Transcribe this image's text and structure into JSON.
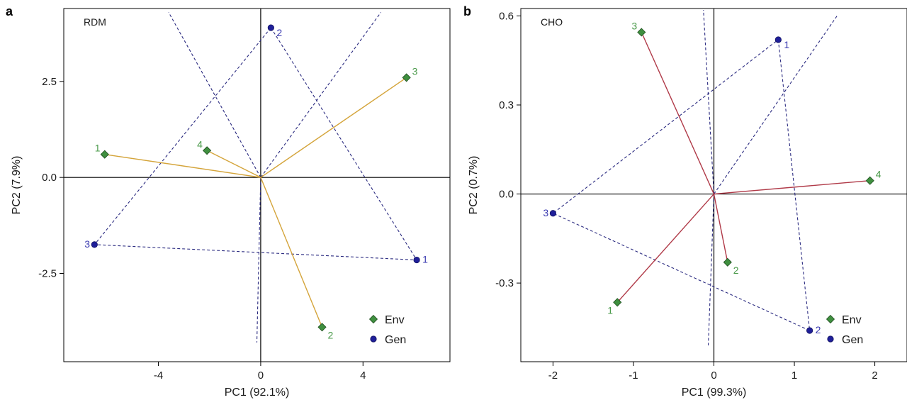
{
  "colors": {
    "env": "#4a9a4a",
    "env_fill": "#3f8f3f",
    "gen": "#1f1f99",
    "gen_label": "#3a3ab0",
    "axis": "#000000",
    "polygon": "#2a2a80"
  },
  "chart_data": [
    {
      "type": "scatter",
      "panel": "a",
      "title": "RDM",
      "xlabel": "PC1 (92.1%)",
      "ylabel": "PC2 (7.9%)",
      "xlim": [
        -7.7,
        7.4
      ],
      "ylim": [
        -4.8,
        4.4
      ],
      "xticks": [
        -4,
        0,
        4
      ],
      "xtick_labels": [
        "-4",
        "0",
        "4"
      ],
      "yticks": [
        -2.5,
        0,
        2.5
      ],
      "ytick_labels": [
        "-2.5",
        "0.0",
        "2.5"
      ],
      "legend": {
        "position": "bottom-right",
        "entries": [
          "Env",
          "Gen"
        ]
      },
      "vector_color": "#d4a43a",
      "env": [
        {
          "label": "1",
          "x": -6.1,
          "y": 0.6
        },
        {
          "label": "2",
          "x": 2.4,
          "y": -3.9
        },
        {
          "label": "3",
          "x": 5.7,
          "y": 2.6
        },
        {
          "label": "4",
          "x": -2.1,
          "y": 0.7
        }
      ],
      "gen": [
        {
          "label": "1",
          "x": 6.1,
          "y": -2.15
        },
        {
          "label": "2",
          "x": 0.4,
          "y": 3.9
        },
        {
          "label": "3",
          "x": -6.5,
          "y": -1.75
        }
      ],
      "polygon_order": [
        "2",
        "1",
        "3"
      ],
      "rays": [
        {
          "x1": 0,
          "y1": 0,
          "x2": -3.6,
          "y2": 4.3
        },
        {
          "x1": 0,
          "y1": 0,
          "x2": 4.7,
          "y2": 4.3
        },
        {
          "x1": 0,
          "y1": 0,
          "x2": -0.15,
          "y2": -4.3
        }
      ]
    },
    {
      "type": "scatter",
      "panel": "b",
      "title": "CHO",
      "xlabel": "PC1 (99.3%)",
      "ylabel": "PC2 (0.7%)",
      "xlim": [
        -2.4,
        2.4
      ],
      "ylim": [
        -0.565,
        0.625
      ],
      "xticks": [
        -2,
        -1,
        0,
        1,
        2
      ],
      "xtick_labels": [
        "-2",
        "-1",
        "0",
        "1",
        "2"
      ],
      "yticks": [
        -0.3,
        0,
        0.3,
        0.6
      ],
      "ytick_labels": [
        "-0.3",
        "0.0",
        "0.3",
        "0.6"
      ],
      "legend": {
        "position": "bottom-right",
        "entries": [
          "Env",
          "Gen"
        ]
      },
      "vector_color": "#b03a48",
      "env": [
        {
          "label": "1",
          "x": -1.2,
          "y": -0.365
        },
        {
          "label": "2",
          "x": 0.17,
          "y": -0.23
        },
        {
          "label": "3",
          "x": -0.9,
          "y": 0.545
        },
        {
          "label": "4",
          "x": 1.94,
          "y": 0.045
        }
      ],
      "gen": [
        {
          "label": "1",
          "x": 0.8,
          "y": 0.52
        },
        {
          "label": "2",
          "x": 1.19,
          "y": -0.46
        },
        {
          "label": "3",
          "x": -2.0,
          "y": -0.065
        }
      ],
      "polygon_order": [
        "1",
        "2",
        "3"
      ],
      "rays": [
        {
          "x1": 0,
          "y1": 0,
          "x2": -0.13,
          "y2": 0.62
        },
        {
          "x1": 0,
          "y1": 0,
          "x2": -0.07,
          "y2": -0.51
        },
        {
          "x1": 0,
          "y1": 0,
          "x2": 1.53,
          "y2": 0.6
        }
      ]
    }
  ]
}
